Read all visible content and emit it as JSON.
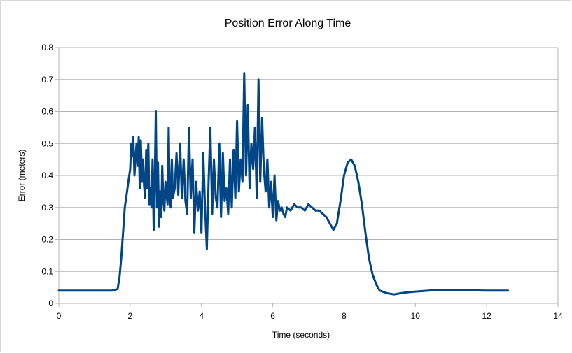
{
  "chart_data": {
    "type": "line",
    "title": "Position Error Along Time",
    "xlabel": "Time (seconds)",
    "ylabel": "Error (meters)",
    "xlim": [
      0,
      14
    ],
    "ylim": [
      0,
      0.8
    ],
    "xticks": [
      "0",
      "2",
      "4",
      "6",
      "8",
      "10",
      "12",
      "14"
    ],
    "yticks": [
      "0",
      "0.1",
      "0.2",
      "0.3",
      "0.4",
      "0.5",
      "0.6",
      "0.7",
      "0.8"
    ],
    "grid": true,
    "legend": "none",
    "series_color": "#004586",
    "series": [
      {
        "x": [
          0,
          0.5,
          1.0,
          1.5,
          1.65,
          1.7,
          1.75,
          1.8,
          1.85,
          1.9,
          1.95,
          2.0,
          2.03,
          2.06,
          2.09,
          2.12,
          2.15,
          2.18,
          2.21,
          2.24,
          2.27,
          2.3,
          2.33,
          2.36,
          2.39,
          2.42,
          2.45,
          2.48,
          2.51,
          2.54,
          2.57,
          2.6,
          2.63,
          2.66,
          2.69,
          2.72,
          2.75,
          2.78,
          2.81,
          2.84,
          2.87,
          2.9,
          2.93,
          2.96,
          2.99,
          3.02,
          3.05,
          3.08,
          3.11,
          3.14,
          3.17,
          3.2,
          3.25,
          3.3,
          3.35,
          3.4,
          3.45,
          3.5,
          3.55,
          3.6,
          3.65,
          3.7,
          3.75,
          3.8,
          3.85,
          3.9,
          3.95,
          4.0,
          4.05,
          4.1,
          4.15,
          4.2,
          4.25,
          4.3,
          4.35,
          4.4,
          4.45,
          4.5,
          4.55,
          4.6,
          4.65,
          4.7,
          4.75,
          4.8,
          4.85,
          4.9,
          4.95,
          5.0,
          5.05,
          5.1,
          5.15,
          5.2,
          5.25,
          5.3,
          5.35,
          5.4,
          5.45,
          5.5,
          5.55,
          5.6,
          5.65,
          5.7,
          5.75,
          5.8,
          5.85,
          5.9,
          5.95,
          6.0,
          6.05,
          6.1,
          6.15,
          6.2,
          6.25,
          6.3,
          6.35,
          6.4,
          6.5,
          6.6,
          6.7,
          6.8,
          6.9,
          7.0,
          7.1,
          7.2,
          7.3,
          7.4,
          7.5,
          7.6,
          7.7,
          7.8,
          7.9,
          8.0,
          8.1,
          8.2,
          8.3,
          8.4,
          8.5,
          8.6,
          8.7,
          8.8,
          8.9,
          9.0,
          9.2,
          9.4,
          9.6,
          9.8,
          10.0,
          10.5,
          11.0,
          11.5,
          12.0,
          12.6
        ],
        "y": [
          0.04,
          0.04,
          0.04,
          0.04,
          0.045,
          0.08,
          0.14,
          0.22,
          0.3,
          0.34,
          0.38,
          0.42,
          0.5,
          0.46,
          0.52,
          0.4,
          0.45,
          0.5,
          0.43,
          0.52,
          0.36,
          0.51,
          0.38,
          0.45,
          0.37,
          0.33,
          0.48,
          0.36,
          0.5,
          0.31,
          0.36,
          0.3,
          0.45,
          0.23,
          0.37,
          0.6,
          0.3,
          0.44,
          0.24,
          0.35,
          0.27,
          0.43,
          0.32,
          0.29,
          0.38,
          0.34,
          0.31,
          0.55,
          0.32,
          0.3,
          0.45,
          0.33,
          0.36,
          0.47,
          0.34,
          0.5,
          0.33,
          0.45,
          0.32,
          0.28,
          0.55,
          0.33,
          0.45,
          0.22,
          0.38,
          0.29,
          0.35,
          0.22,
          0.47,
          0.3,
          0.17,
          0.38,
          0.55,
          0.28,
          0.45,
          0.33,
          0.3,
          0.5,
          0.27,
          0.47,
          0.32,
          0.36,
          0.28,
          0.45,
          0.3,
          0.48,
          0.33,
          0.57,
          0.35,
          0.45,
          0.38,
          0.72,
          0.4,
          0.62,
          0.36,
          0.5,
          0.42,
          0.55,
          0.33,
          0.7,
          0.38,
          0.58,
          0.42,
          0.35,
          0.45,
          0.3,
          0.38,
          0.27,
          0.4,
          0.26,
          0.32,
          0.29,
          0.3,
          0.28,
          0.27,
          0.3,
          0.29,
          0.31,
          0.3,
          0.3,
          0.29,
          0.31,
          0.3,
          0.29,
          0.29,
          0.28,
          0.27,
          0.25,
          0.23,
          0.25,
          0.32,
          0.4,
          0.44,
          0.45,
          0.43,
          0.38,
          0.31,
          0.22,
          0.14,
          0.09,
          0.06,
          0.04,
          0.032,
          0.028,
          0.032,
          0.035,
          0.037,
          0.041,
          0.042,
          0.041,
          0.04,
          0.04
        ]
      }
    ]
  }
}
